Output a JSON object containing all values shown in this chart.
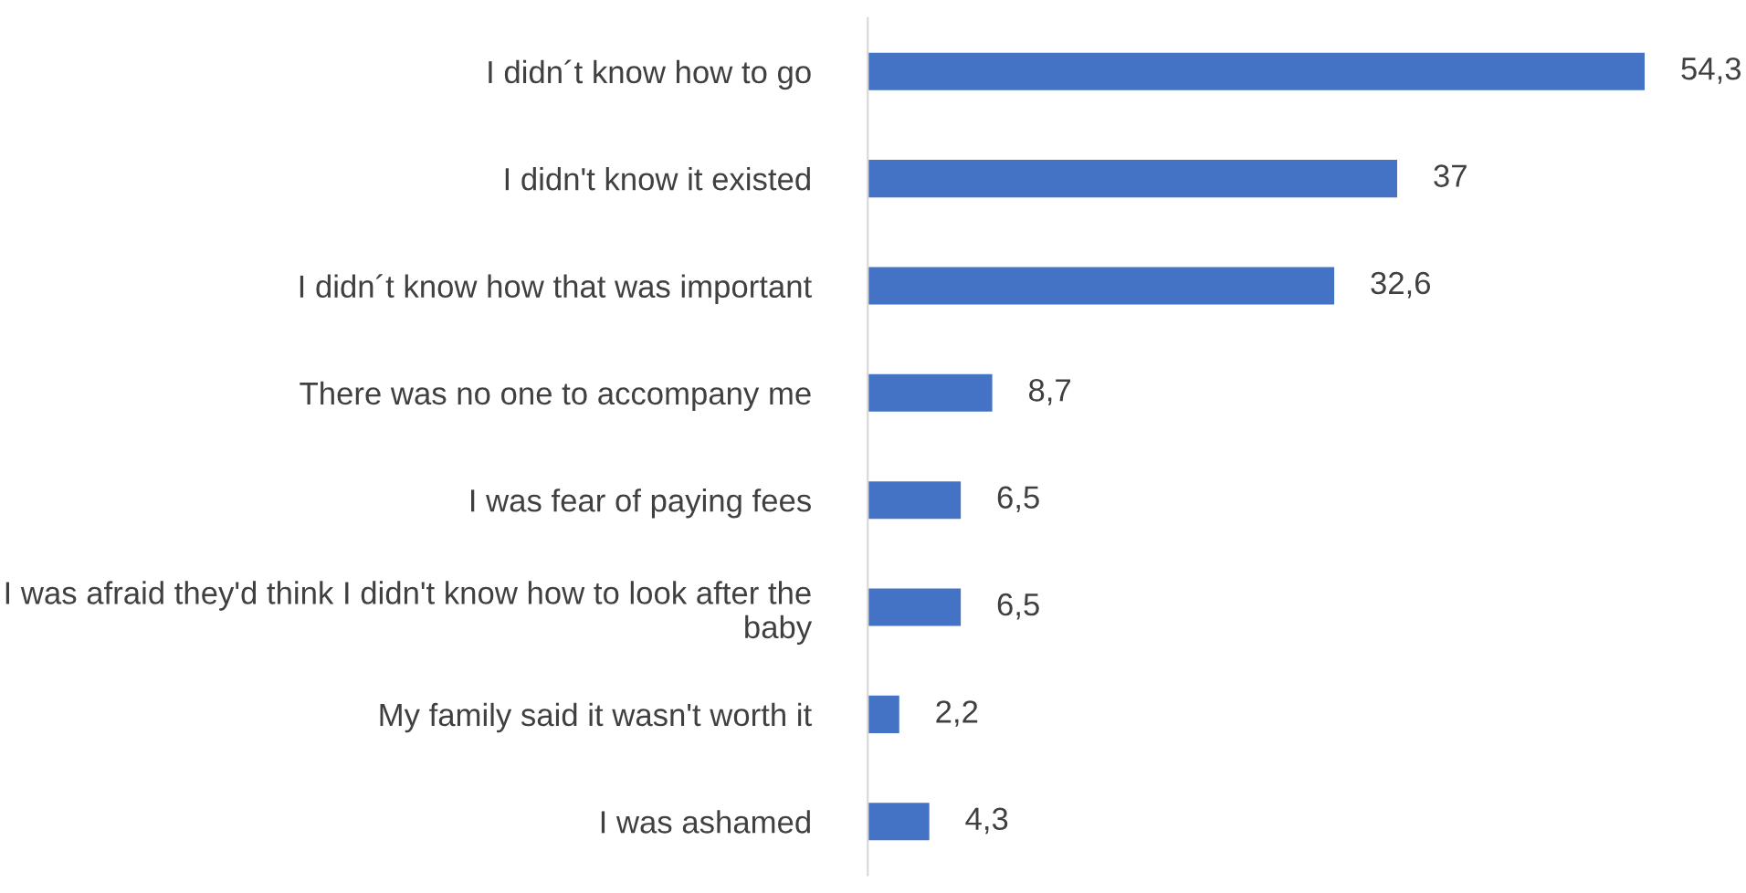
{
  "chart_data": {
    "type": "bar",
    "orientation": "horizontal",
    "categories": [
      "I didn´t know how to go",
      "I didn't know it existed",
      "I didn´t know how that was important",
      "There was no one to accompany me",
      "I was fear of paying fees",
      "I was afraid they'd think I didn't know how to look after the baby",
      "My family said it wasn't worth it",
      "I was ashamed"
    ],
    "values": [
      54.3,
      37,
      32.6,
      8.7,
      6.5,
      6.5,
      2.2,
      4.3
    ],
    "value_labels": [
      "54,3",
      "37",
      "32,6",
      "8,7",
      "6,5",
      "6,5",
      "2,2",
      "4,3"
    ],
    "color": "#4472c4",
    "grid": false,
    "legend": false
  }
}
